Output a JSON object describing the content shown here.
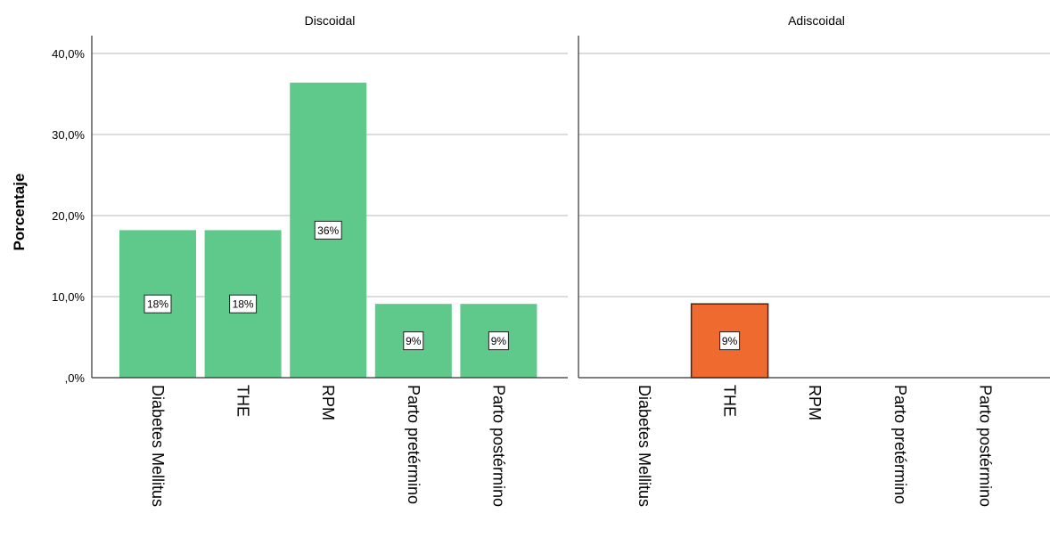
{
  "chart_data": {
    "type": "bar",
    "ylabel": "Porcentaje",
    "ylim": [
      0,
      42
    ],
    "yticks": [
      {
        "value": 0,
        "label": ",0%"
      },
      {
        "value": 10,
        "label": "10,0%"
      },
      {
        "value": 20,
        "label": "20,0%"
      },
      {
        "value": 30,
        "label": "30,0%"
      },
      {
        "value": 40,
        "label": "40,0%"
      }
    ],
    "grid": true,
    "categories": [
      "Diabetes Mellitus",
      "THE",
      "RPM",
      "Parto pretérmino",
      "Parto postérmino"
    ],
    "panels": [
      {
        "title": "Discoidal",
        "color": "#5ec98a",
        "values": [
          18.2,
          18.2,
          36.4,
          9.1,
          9.1
        ],
        "labels": [
          "18%",
          "18%",
          "36%",
          "9%",
          "9%"
        ]
      },
      {
        "title": "Adiscoidal",
        "color": "#ee6a2e",
        "values": [
          0,
          9.1,
          0,
          0,
          0
        ],
        "labels": [
          "",
          "9%",
          "",
          "",
          ""
        ]
      }
    ]
  }
}
